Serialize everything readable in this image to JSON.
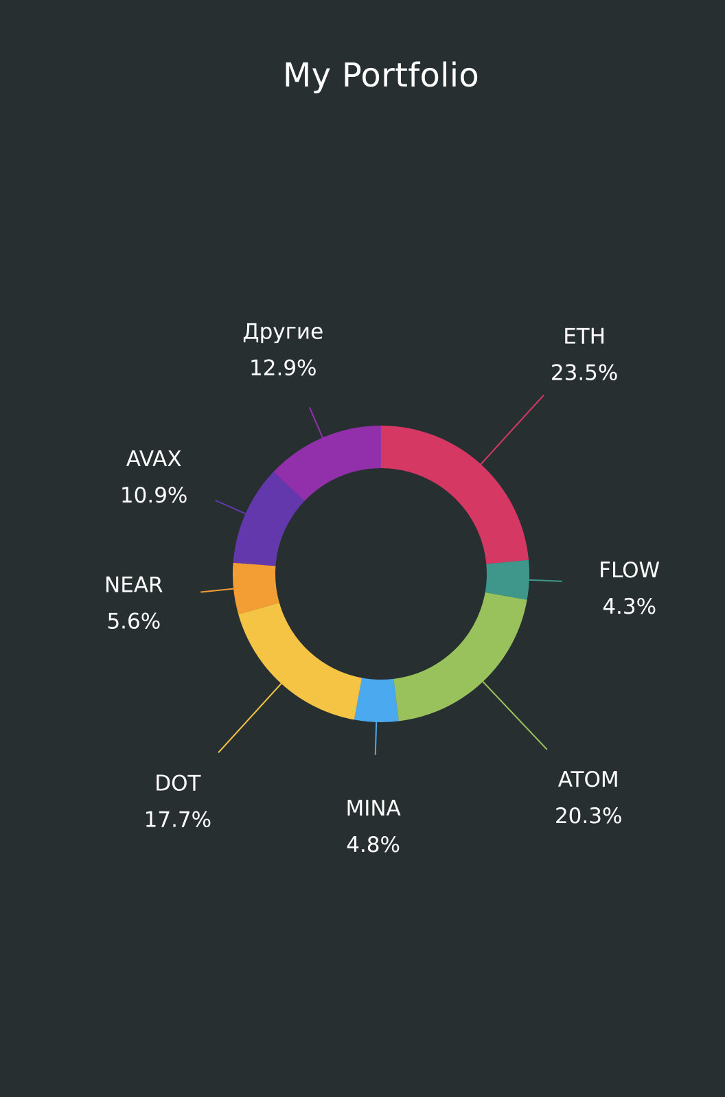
{
  "chart_data": {
    "type": "pie",
    "title": "My Portfolio",
    "hole": true,
    "labels_outside": true,
    "slices": [
      {
        "label": "ETH",
        "value": 23.5,
        "percent_label": "23.5%",
        "color": "#d63864"
      },
      {
        "label": "FLOW",
        "value": 4.3,
        "percent_label": "4.3%",
        "color": "#3f968a"
      },
      {
        "label": "ATOM",
        "value": 20.3,
        "percent_label": "20.3%",
        "color": "#99c25d"
      },
      {
        "label": "MINA",
        "value": 4.8,
        "percent_label": "4.8%",
        "color": "#4aa9ef"
      },
      {
        "label": "DOT",
        "value": 17.7,
        "percent_label": "17.7%",
        "color": "#f5c444"
      },
      {
        "label": "NEAR",
        "value": 5.6,
        "percent_label": "5.6%",
        "color": "#f29e34"
      },
      {
        "label": "AVAX",
        "value": 10.9,
        "percent_label": "10.9%",
        "color": "#6438ad"
      },
      {
        "label": "Другие",
        "value": 12.9,
        "percent_label": "12.9%",
        "color": "#9230ac"
      }
    ]
  },
  "colors": {
    "background": "#272f31",
    "text": "#ffffff"
  }
}
